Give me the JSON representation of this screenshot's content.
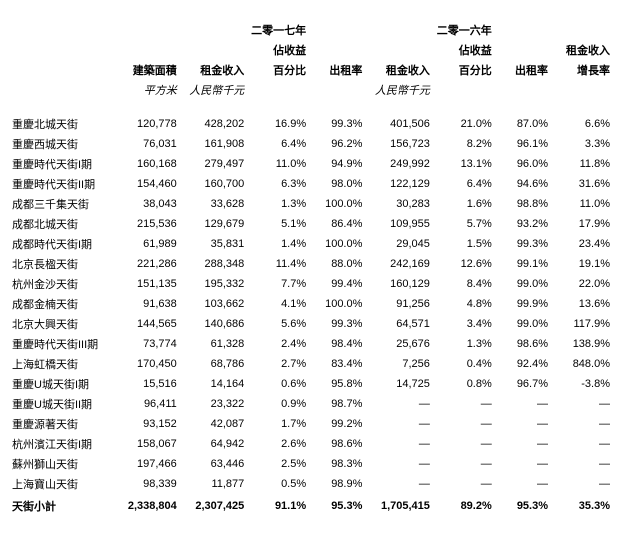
{
  "table": {
    "headers": {
      "name": "",
      "area": "建築面積",
      "rent17": "租金收入",
      "pct17_top": "二零一七年",
      "pct17_mid": "佔收益",
      "pct17": "百分比",
      "occ17": "出租率",
      "rent16": "租金收入",
      "pct16_top": "二零一六年",
      "pct16_mid": "佔收益",
      "pct16": "百分比",
      "occ16": "出租率",
      "growth_top": "租金收入",
      "growth": "增長率"
    },
    "units": {
      "area": "平方米",
      "rent17": "人民幣千元",
      "rent16": "人民幣千元"
    },
    "rows": [
      {
        "name": "重慶北城天街",
        "area": "120,778",
        "rent17": "428,202",
        "pct17": "16.9%",
        "occ17": "99.3%",
        "rent16": "401,506",
        "pct16": "21.0%",
        "occ16": "87.0%",
        "growth": "6.6%"
      },
      {
        "name": "重慶西城天街",
        "area": "76,031",
        "rent17": "161,908",
        "pct17": "6.4%",
        "occ17": "96.2%",
        "rent16": "156,723",
        "pct16": "8.2%",
        "occ16": "96.1%",
        "growth": "3.3%"
      },
      {
        "name": "重慶時代天街I期",
        "area": "160,168",
        "rent17": "279,497",
        "pct17": "11.0%",
        "occ17": "94.9%",
        "rent16": "249,992",
        "pct16": "13.1%",
        "occ16": "96.0%",
        "growth": "11.8%"
      },
      {
        "name": "重慶時代天街II期",
        "area": "154,460",
        "rent17": "160,700",
        "pct17": "6.3%",
        "occ17": "98.0%",
        "rent16": "122,129",
        "pct16": "6.4%",
        "occ16": "94.6%",
        "growth": "31.6%"
      },
      {
        "name": "成都三千集天街",
        "area": "38,043",
        "rent17": "33,628",
        "pct17": "1.3%",
        "occ17": "100.0%",
        "rent16": "30,283",
        "pct16": "1.6%",
        "occ16": "98.8%",
        "growth": "11.0%"
      },
      {
        "name": "成都北城天街",
        "area": "215,536",
        "rent17": "129,679",
        "pct17": "5.1%",
        "occ17": "86.4%",
        "rent16": "109,955",
        "pct16": "5.7%",
        "occ16": "93.2%",
        "growth": "17.9%"
      },
      {
        "name": "成都時代天街I期",
        "area": "61,989",
        "rent17": "35,831",
        "pct17": "1.4%",
        "occ17": "100.0%",
        "rent16": "29,045",
        "pct16": "1.5%",
        "occ16": "99.3%",
        "growth": "23.4%"
      },
      {
        "name": "北京長楹天街",
        "area": "221,286",
        "rent17": "288,348",
        "pct17": "11.4%",
        "occ17": "88.0%",
        "rent16": "242,169",
        "pct16": "12.6%",
        "occ16": "99.1%",
        "growth": "19.1%"
      },
      {
        "name": "杭州金沙天街",
        "area": "151,135",
        "rent17": "195,332",
        "pct17": "7.7%",
        "occ17": "99.4%",
        "rent16": "160,129",
        "pct16": "8.4%",
        "occ16": "99.0%",
        "growth": "22.0%"
      },
      {
        "name": "成都金楠天街",
        "area": "91,638",
        "rent17": "103,662",
        "pct17": "4.1%",
        "occ17": "100.0%",
        "rent16": "91,256",
        "pct16": "4.8%",
        "occ16": "99.9%",
        "growth": "13.6%"
      },
      {
        "name": "北京大興天街",
        "area": "144,565",
        "rent17": "140,686",
        "pct17": "5.6%",
        "occ17": "99.3%",
        "rent16": "64,571",
        "pct16": "3.4%",
        "occ16": "99.0%",
        "growth": "117.9%"
      },
      {
        "name": "重慶時代天街III期",
        "area": "73,774",
        "rent17": "61,328",
        "pct17": "2.4%",
        "occ17": "98.4%",
        "rent16": "25,676",
        "pct16": "1.3%",
        "occ16": "98.6%",
        "growth": "138.9%"
      },
      {
        "name": "上海虹橋天街",
        "area": "170,450",
        "rent17": "68,786",
        "pct17": "2.7%",
        "occ17": "83.4%",
        "rent16": "7,256",
        "pct16": "0.4%",
        "occ16": "92.4%",
        "growth": "848.0%"
      },
      {
        "name": "重慶U城天街I期",
        "area": "15,516",
        "rent17": "14,164",
        "pct17": "0.6%",
        "occ17": "95.8%",
        "rent16": "14,725",
        "pct16": "0.8%",
        "occ16": "96.7%",
        "growth": "-3.8%"
      },
      {
        "name": "重慶U城天街II期",
        "area": "96,411",
        "rent17": "23,322",
        "pct17": "0.9%",
        "occ17": "98.7%",
        "rent16": "—",
        "pct16": "—",
        "occ16": "—",
        "growth": "—"
      },
      {
        "name": "重慶源著天街",
        "area": "93,152",
        "rent17": "42,087",
        "pct17": "1.7%",
        "occ17": "99.2%",
        "rent16": "—",
        "pct16": "—",
        "occ16": "—",
        "growth": "—"
      },
      {
        "name": "杭州濱江天街I期",
        "area": "158,067",
        "rent17": "64,942",
        "pct17": "2.6%",
        "occ17": "98.6%",
        "rent16": "—",
        "pct16": "—",
        "occ16": "—",
        "growth": "—"
      },
      {
        "name": "蘇州獅山天街",
        "area": "197,466",
        "rent17": "63,446",
        "pct17": "2.5%",
        "occ17": "98.3%",
        "rent16": "—",
        "pct16": "—",
        "occ16": "—",
        "growth": "—"
      },
      {
        "name": "上海寶山天街",
        "area": "98,339",
        "rent17": "11,877",
        "pct17": "0.5%",
        "occ17": "98.9%",
        "rent16": "—",
        "pct16": "—",
        "occ16": "—",
        "growth": "—"
      }
    ],
    "total": {
      "name": "天街小計",
      "area": "2,338,804",
      "rent17": "2,307,425",
      "pct17": "91.1%",
      "occ17": "95.3%",
      "rent16": "1,705,415",
      "pct16": "89.2%",
      "occ16": "95.3%",
      "growth": "35.3%"
    }
  }
}
